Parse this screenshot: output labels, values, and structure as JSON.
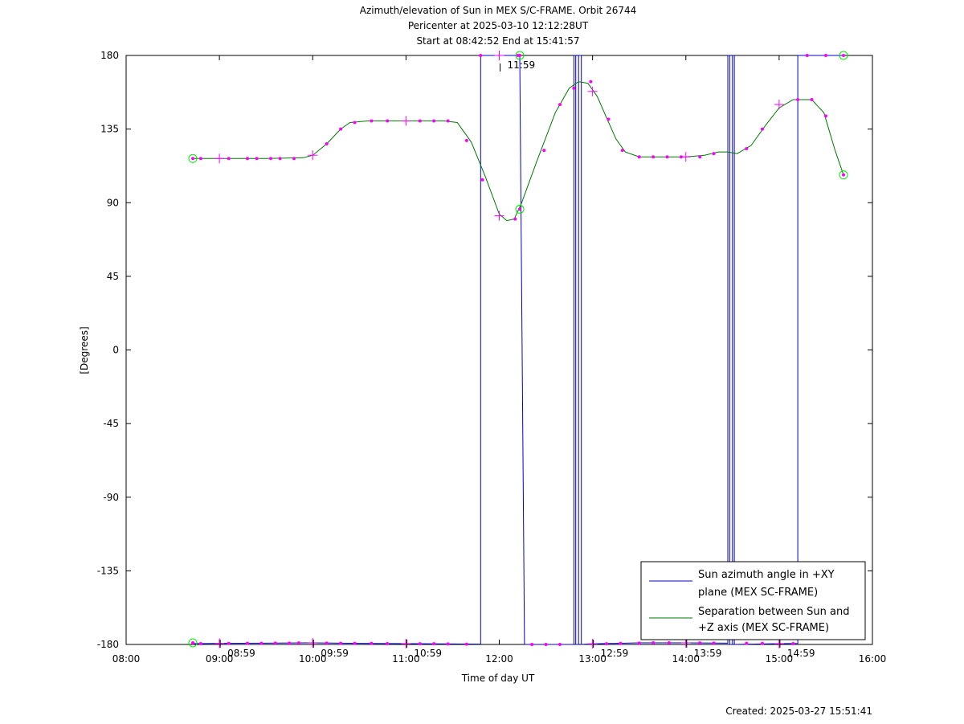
{
  "chart_data": {
    "type": "line",
    "title_lines": [
      "Azimuth/elevation of Sun in MEX S/C-FRAME.  Orbit 26744",
      "Pericenter at 2025-03-10 12:12:28UT",
      "Start at 08:42:52 End at 15:41:57"
    ],
    "xlabel": "Time of day UT",
    "ylabel": "[Degrees]",
    "xlim": [
      8.0,
      16.0
    ],
    "ylim": [
      -180,
      180
    ],
    "x_ticks": [
      8,
      9,
      10,
      11,
      12,
      13,
      14,
      15,
      16
    ],
    "x_tick_labels": [
      "08:00",
      "09:00",
      "10:00",
      "11:00",
      "12:00",
      "13:00",
      "14:00",
      "15:00",
      "16:00"
    ],
    "y_ticks": [
      180,
      135,
      90,
      45,
      0,
      -45,
      -90,
      -135,
      -180
    ],
    "y_tick_labels": [
      "180",
      "135",
      "90",
      "45",
      "0",
      "-45",
      "-90",
      "-135",
      "-180"
    ],
    "grid": false,
    "legend_position": "bottom-right",
    "hour_markers": [
      {
        "x": 8.983,
        "label": "08:59",
        "anchor": "bottom"
      },
      {
        "x": 9.983,
        "label": "09:59",
        "anchor": "bottom"
      },
      {
        "x": 10.983,
        "label": "10:59",
        "anchor": "bottom"
      },
      {
        "x": 11.983,
        "label": "11:59",
        "anchor": "top"
      },
      {
        "x": 12.983,
        "label": "12:59",
        "anchor": "bottom"
      },
      {
        "x": 13.983,
        "label": "13:59",
        "anchor": "bottom"
      },
      {
        "x": 14.983,
        "label": "14:59",
        "anchor": "bottom"
      }
    ],
    "series": [
      {
        "name": "Sun azimuth angle in +XY plane (MEX SC-FRAME)",
        "legend_lines": [
          "Sun azimuth angle in +XY",
          "plane (MEX SC-FRAME)"
        ],
        "color": "#0000cc",
        "points": [
          [
            8.715,
            -179.5
          ],
          [
            9.0,
            -179.3
          ],
          [
            9.5,
            -179.2
          ],
          [
            10.0,
            -179.0
          ],
          [
            10.5,
            -179.3
          ],
          [
            11.0,
            -179.5
          ],
          [
            11.5,
            -179.7
          ],
          [
            11.8,
            -179.8
          ],
          [
            11.8,
            180
          ],
          [
            12.22,
            180
          ],
          [
            12.27,
            -180
          ],
          [
            12.8,
            -180
          ],
          [
            12.8,
            180
          ],
          [
            12.82,
            180
          ],
          [
            12.82,
            -180
          ],
          [
            12.85,
            -180
          ],
          [
            12.85,
            180
          ],
          [
            12.88,
            180
          ],
          [
            12.88,
            -180
          ],
          [
            13.0,
            -179.6
          ],
          [
            13.5,
            -179.0
          ],
          [
            14.0,
            -179.0
          ],
          [
            14.45,
            -179.2
          ],
          [
            14.45,
            180
          ],
          [
            14.47,
            180
          ],
          [
            14.47,
            -180
          ],
          [
            14.5,
            -180
          ],
          [
            14.5,
            180
          ],
          [
            14.52,
            180
          ],
          [
            14.52,
            -180
          ],
          [
            15.0,
            -179.5
          ],
          [
            15.2,
            -179.4
          ],
          [
            15.2,
            180
          ],
          [
            15.5,
            180
          ],
          [
            15.69,
            180
          ]
        ]
      },
      {
        "name": "Separation between Sun and +Z axis (MEX SC-FRAME)",
        "legend_lines": [
          "Separation between Sun and",
          "+Z axis (MEX SC-FRAME)"
        ],
        "color": "#007700",
        "points": [
          [
            8.715,
            117
          ],
          [
            9.0,
            117
          ],
          [
            9.5,
            117
          ],
          [
            9.9,
            117.5
          ],
          [
            10.0,
            119
          ],
          [
            10.15,
            126
          ],
          [
            10.3,
            135
          ],
          [
            10.4,
            139
          ],
          [
            10.6,
            140
          ],
          [
            11.0,
            140
          ],
          [
            11.4,
            140
          ],
          [
            11.55,
            139
          ],
          [
            11.7,
            127
          ],
          [
            11.85,
            106
          ],
          [
            12.0,
            83
          ],
          [
            12.08,
            79
          ],
          [
            12.16,
            80
          ],
          [
            12.24,
            90
          ],
          [
            12.4,
            115
          ],
          [
            12.6,
            145
          ],
          [
            12.75,
            160
          ],
          [
            12.85,
            164
          ],
          [
            12.95,
            163
          ],
          [
            13.05,
            155
          ],
          [
            13.15,
            142
          ],
          [
            13.25,
            129
          ],
          [
            13.35,
            121
          ],
          [
            13.5,
            118
          ],
          [
            14.0,
            118
          ],
          [
            14.2,
            119
          ],
          [
            14.35,
            121
          ],
          [
            14.45,
            121
          ],
          [
            14.55,
            120
          ],
          [
            14.7,
            125
          ],
          [
            14.85,
            137
          ],
          [
            15.0,
            148
          ],
          [
            15.15,
            153
          ],
          [
            15.35,
            153
          ],
          [
            15.48,
            145
          ],
          [
            15.6,
            122
          ],
          [
            15.69,
            107
          ]
        ]
      }
    ],
    "markers": {
      "color": "#ff00ff",
      "dots": [
        [
          8.8,
          117
        ],
        [
          9.1,
          117
        ],
        [
          9.3,
          117
        ],
        [
          9.4,
          117
        ],
        [
          9.55,
          117
        ],
        [
          9.65,
          117
        ],
        [
          9.8,
          117
        ],
        [
          10.15,
          126
        ],
        [
          10.3,
          135
        ],
        [
          10.45,
          139
        ],
        [
          10.63,
          140
        ],
        [
          10.8,
          140
        ],
        [
          11.15,
          140
        ],
        [
          11.3,
          140
        ],
        [
          11.45,
          140
        ],
        [
          11.65,
          128
        ],
        [
          11.82,
          104
        ],
        [
          12.17,
          80
        ],
        [
          12.48,
          122
        ],
        [
          12.65,
          150
        ],
        [
          12.8,
          160
        ],
        [
          12.98,
          164
        ],
        [
          13.17,
          141
        ],
        [
          13.32,
          122
        ],
        [
          13.5,
          118
        ],
        [
          13.65,
          118
        ],
        [
          13.8,
          118
        ],
        [
          13.95,
          118
        ],
        [
          14.15,
          118
        ],
        [
          14.3,
          120
        ],
        [
          14.65,
          123
        ],
        [
          14.82,
          135
        ],
        [
          15.2,
          153
        ],
        [
          15.35,
          153
        ],
        [
          15.5,
          143
        ],
        [
          8.8,
          -179.5
        ],
        [
          9.1,
          -179.4
        ],
        [
          9.3,
          -179.3
        ],
        [
          9.45,
          -179.3
        ],
        [
          9.6,
          -179.2
        ],
        [
          9.75,
          -179.2
        ],
        [
          9.85,
          -179.1
        ],
        [
          10.15,
          -179.2
        ],
        [
          10.3,
          -179.3
        ],
        [
          10.45,
          -179.4
        ],
        [
          10.63,
          -179.4
        ],
        [
          10.8,
          -179.5
        ],
        [
          11.15,
          -179.6
        ],
        [
          11.3,
          -179.6
        ],
        [
          11.45,
          -179.7
        ],
        [
          11.65,
          -179.8
        ],
        [
          12.35,
          -180
        ],
        [
          12.5,
          -180
        ],
        [
          12.65,
          -180
        ],
        [
          13.15,
          -179.6
        ],
        [
          13.3,
          -179.4
        ],
        [
          13.5,
          -179.2
        ],
        [
          13.65,
          -179.0
        ],
        [
          13.82,
          -179.0
        ],
        [
          14.15,
          -179.1
        ],
        [
          14.3,
          -179.2
        ],
        [
          14.65,
          -179.3
        ],
        [
          14.82,
          -179.4
        ],
        [
          15.15,
          -179.5
        ],
        [
          15.3,
          180
        ],
        [
          15.5,
          180
        ],
        [
          11.8,
          180
        ],
        [
          12.2,
          180
        ]
      ],
      "crosses": [
        [
          9.0,
          117
        ],
        [
          10.0,
          119
        ],
        [
          11.0,
          140
        ],
        [
          12.0,
          82
        ],
        [
          13.0,
          158
        ],
        [
          14.0,
          118
        ],
        [
          15.0,
          150
        ],
        [
          9.0,
          -179.3
        ],
        [
          10.0,
          -179.1
        ],
        [
          11.0,
          -179.5
        ],
        [
          12.0,
          180
        ],
        [
          13.0,
          -179.6
        ],
        [
          14.0,
          -179.0
        ],
        [
          15.0,
          -179.5
        ]
      ],
      "circles": [
        [
          8.715,
          117
        ],
        [
          8.715,
          -179
        ],
        [
          12.22,
          86
        ],
        [
          12.22,
          180
        ],
        [
          15.69,
          107
        ],
        [
          15.69,
          180
        ]
      ]
    }
  },
  "footer": {
    "created": "Created: 2025-03-27 15:51:41"
  }
}
